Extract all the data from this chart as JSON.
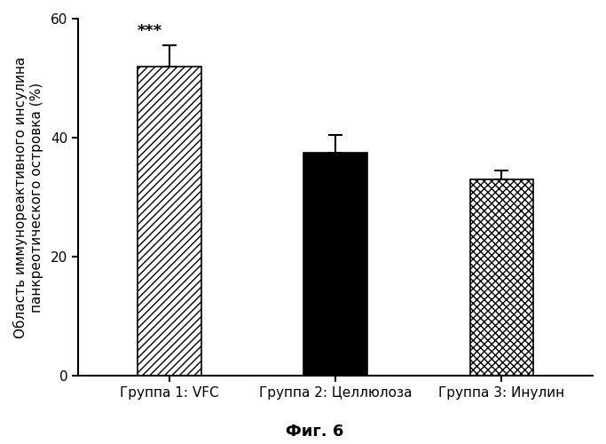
{
  "categories": [
    "Группа 1: VFC",
    "Группа 2: Целлюлоза",
    "Группа 3: Инулин"
  ],
  "values": [
    52.0,
    37.5,
    33.0
  ],
  "errors": [
    3.5,
    3.0,
    1.5
  ],
  "bar_facecolors": [
    "white",
    "black",
    "white"
  ],
  "bar_edgecolors": [
    "black",
    "black",
    "black"
  ],
  "hatch_patterns": [
    "////",
    "",
    "xxxx"
  ],
  "ylim": [
    0,
    60
  ],
  "yticks": [
    0,
    20,
    40,
    60
  ],
  "ylabel": "Область иммунореактивного инсулина\nпанкреотического островка (%)",
  "significance_text": "***",
  "significance_bar_index": 0,
  "figure_label": "Фиг. 6",
  "background_color": "#ffffff",
  "bar_width": 0.38,
  "ylabel_fontsize": 11,
  "tick_fontsize": 11,
  "label_fontsize": 11,
  "figure_label_fontsize": 13
}
